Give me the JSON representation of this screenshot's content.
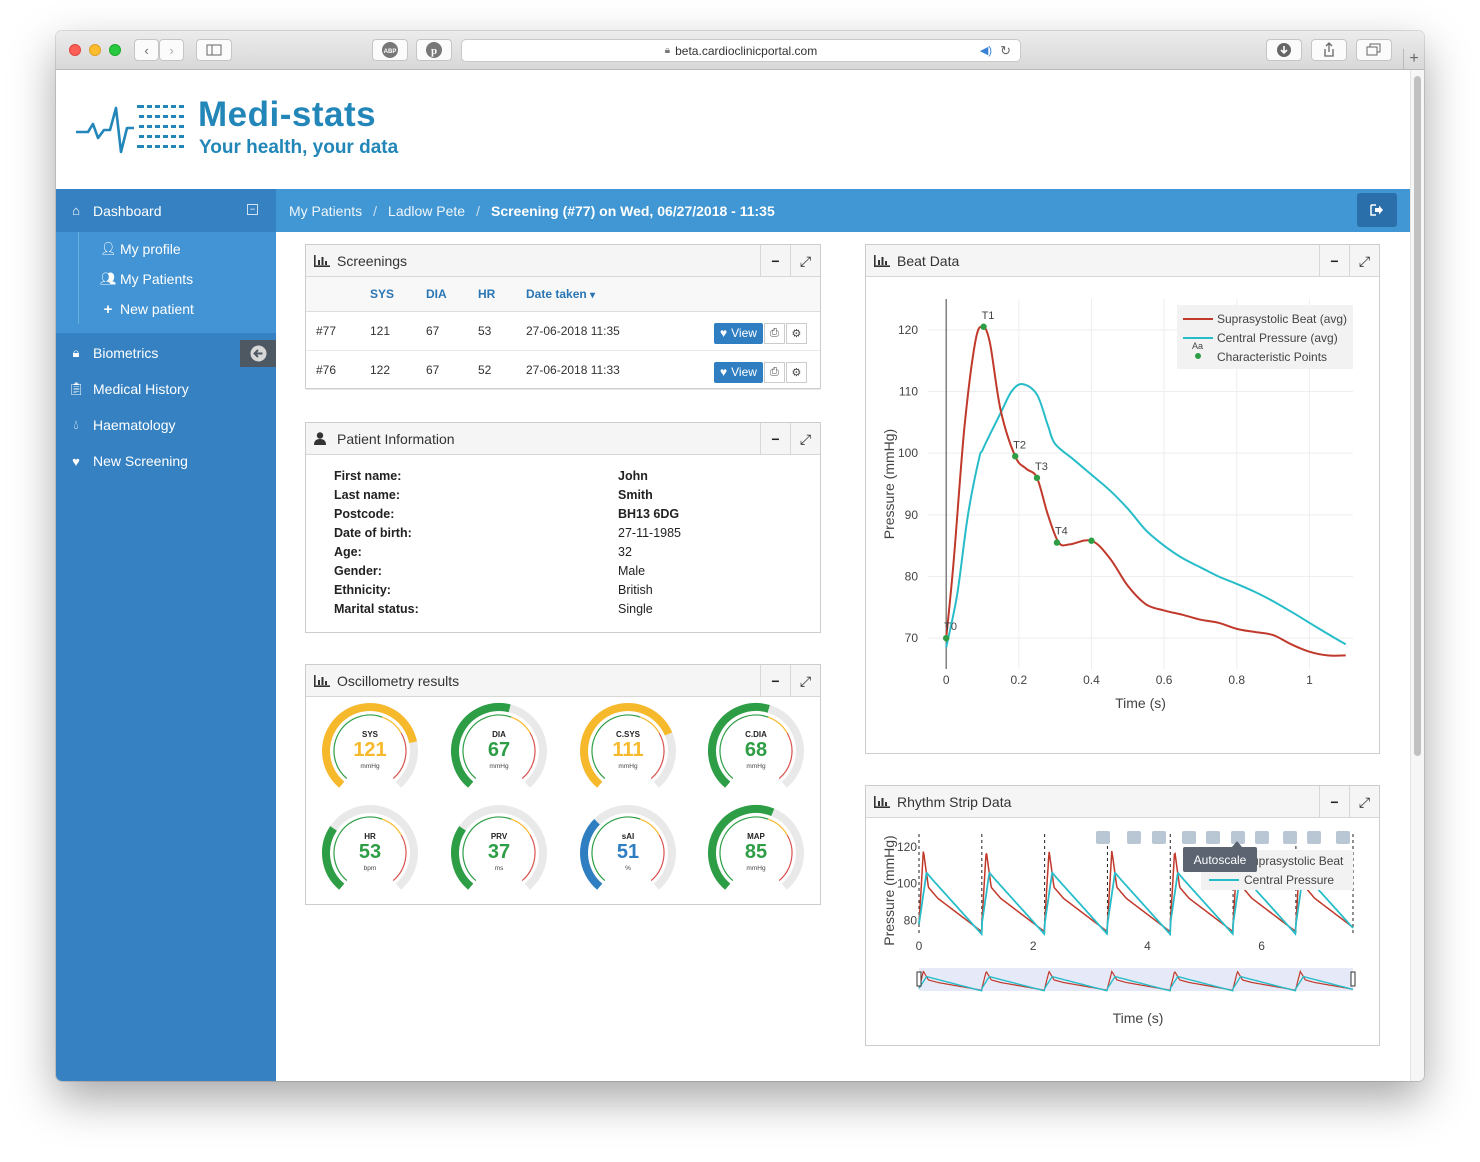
{
  "browser": {
    "url": "beta.cardioclinicportal.com"
  },
  "brand": {
    "name": "Medi-stats",
    "tagline": "Your health, your data"
  },
  "sidebar": {
    "dashboard": "Dashboard",
    "sub": [
      "My profile",
      "My Patients",
      "New patient"
    ],
    "items": [
      "Biometrics",
      "Medical History",
      "Haematology",
      "New Screening"
    ]
  },
  "breadcrumb": {
    "c1": "My Patients",
    "c2": "Ladlow Pete",
    "c3": "Screening (#77) on Wed, 06/27/2018 - 11:35",
    "sep": "/"
  },
  "screenings": {
    "title": "Screenings",
    "headers": {
      "sys": "SYS",
      "dia": "DIA",
      "hr": "HR",
      "date": "Date taken"
    },
    "view_label": "View",
    "rows": [
      {
        "id": "#77",
        "sys": "121",
        "dia": "67",
        "hr": "53",
        "date": "27-06-2018 11:35"
      },
      {
        "id": "#76",
        "sys": "122",
        "dia": "67",
        "hr": "52",
        "date": "27-06-2018 11:33"
      }
    ]
  },
  "patient": {
    "title": "Patient Information",
    "fields": [
      {
        "k": "First name:",
        "v": "John"
      },
      {
        "k": "Last name:",
        "v": "Smith"
      },
      {
        "k": "Postcode:",
        "v": "BH13 6DG"
      },
      {
        "k": "Date of birth:",
        "v": "27-11-1985"
      },
      {
        "k": "Age:",
        "v": "32"
      },
      {
        "k": "Gender:",
        "v": "Male"
      },
      {
        "k": "Ethnicity:",
        "v": "British"
      },
      {
        "k": "Marital status:",
        "v": "Single"
      }
    ]
  },
  "osc": {
    "title": "Oscillometry results",
    "gauges": [
      {
        "label": "SYS",
        "value": "121",
        "unit": "mmHg",
        "color": "#f7b92c",
        "frac": 0.78
      },
      {
        "label": "DIA",
        "value": "67",
        "unit": "mmHg",
        "color": "#2e9e46",
        "frac": 0.55
      },
      {
        "label": "C.SYS",
        "value": "111",
        "unit": "mmHg",
        "color": "#f7b92c",
        "frac": 0.74
      },
      {
        "label": "C.DIA",
        "value": "68",
        "unit": "mmHg",
        "color": "#2e9e46",
        "frac": 0.56
      },
      {
        "label": "HR",
        "value": "53",
        "unit": "bpm",
        "color": "#2e9e46",
        "frac": 0.3
      },
      {
        "label": "PRV",
        "value": "37",
        "unit": "ms",
        "color": "#2e9e46",
        "frac": 0.3
      },
      {
        "label": "sAI",
        "value": "51",
        "unit": "%",
        "color": "#2f7ec1",
        "frac": 0.34
      },
      {
        "label": "MAP",
        "value": "85",
        "unit": "mmHg",
        "color": "#2e9e46",
        "frac": 0.58
      }
    ]
  },
  "beat": {
    "title": "Beat Data"
  },
  "rhythm": {
    "title": "Rhythm Strip Data",
    "tooltip": "Autoscale"
  },
  "chart_data": [
    {
      "type": "line",
      "title": "Beat Data",
      "xlabel": "Time (s)",
      "ylabel": "Pressure (mmHg)",
      "xlim": [
        -0.05,
        1.12
      ],
      "ylim": [
        65,
        125
      ],
      "xticks": [
        "0",
        "0.2",
        "0.4",
        "0.6",
        "0.8",
        "1"
      ],
      "yticks": [
        "70",
        "80",
        "90",
        "100",
        "110",
        "120"
      ],
      "legend": [
        "Suprasystolic Beat (avg)",
        "Central Pressure (avg)",
        "Characteristic Points"
      ],
      "legend_aa": "Aa",
      "series": [
        {
          "name": "Suprasystolic Beat (avg)",
          "color": "#c0392b",
          "x": [
            0,
            0.02,
            0.05,
            0.08,
            0.1,
            0.12,
            0.15,
            0.19,
            0.22,
            0.25,
            0.28,
            0.31,
            0.34,
            0.4,
            0.45,
            0.5,
            0.55,
            0.6,
            0.65,
            0.7,
            0.75,
            0.8,
            0.85,
            0.9,
            0.95,
            1.0,
            1.05,
            1.1
          ],
          "y": [
            70,
            82,
            104,
            118,
            120.5,
            118,
            107,
            99.5,
            97.5,
            96,
            90,
            85.5,
            85.2,
            85.8,
            83,
            78.5,
            75.5,
            74.5,
            73.8,
            73,
            72.5,
            71.5,
            71,
            70.5,
            69,
            67.8,
            67.2,
            67.2
          ]
        },
        {
          "name": "Central Pressure (avg)",
          "color": "#26bdc9",
          "x": [
            0,
            0.03,
            0.06,
            0.09,
            0.1,
            0.12,
            0.15,
            0.18,
            0.21,
            0.25,
            0.28,
            0.3,
            0.35,
            0.4,
            0.45,
            0.5,
            0.55,
            0.6,
            0.65,
            0.7,
            0.75,
            0.8,
            0.85,
            0.9,
            0.95,
            1.0,
            1.05,
            1.1
          ],
          "y": [
            68.5,
            77,
            90,
            99,
            100.5,
            103,
            106.5,
            110,
            111.2,
            109.5,
            104.5,
            101.5,
            99,
            96.5,
            94,
            91,
            87.5,
            85,
            83,
            81.5,
            80,
            78.8,
            77.5,
            76,
            74.3,
            72.5,
            70.7,
            69
          ]
        },
        {
          "name": "Characteristic Points",
          "color": "#2e9e46",
          "labels": [
            "T0",
            "T1",
            "T2",
            "T3",
            "T4",
            ""
          ],
          "x": [
            0,
            0.103,
            0.19,
            0.25,
            0.305,
            0.4
          ],
          "y": [
            70,
            120.5,
            99.5,
            96,
            85.5,
            85.8
          ]
        }
      ]
    },
    {
      "type": "line",
      "title": "Rhythm Strip Data",
      "xlabel": "Time (s)",
      "ylabel": "Pressure (mmHg)",
      "xlim": [
        0,
        7.6
      ],
      "ylim": [
        72,
        126
      ],
      "xticks": [
        "0",
        "2",
        "4",
        "6"
      ],
      "yticks": [
        "80",
        "100",
        "120"
      ],
      "legend": [
        "Suprasystolic Beat",
        "Central Pressure"
      ],
      "beat_starts": [
        0,
        1.1,
        2.2,
        3.3,
        4.4,
        5.5,
        6.6
      ],
      "beat_period": 1.1,
      "series": [
        {
          "name": "Suprasystolic Beat",
          "color": "#c0392b"
        },
        {
          "name": "Central Pressure",
          "color": "#26bdc9"
        }
      ]
    }
  ]
}
